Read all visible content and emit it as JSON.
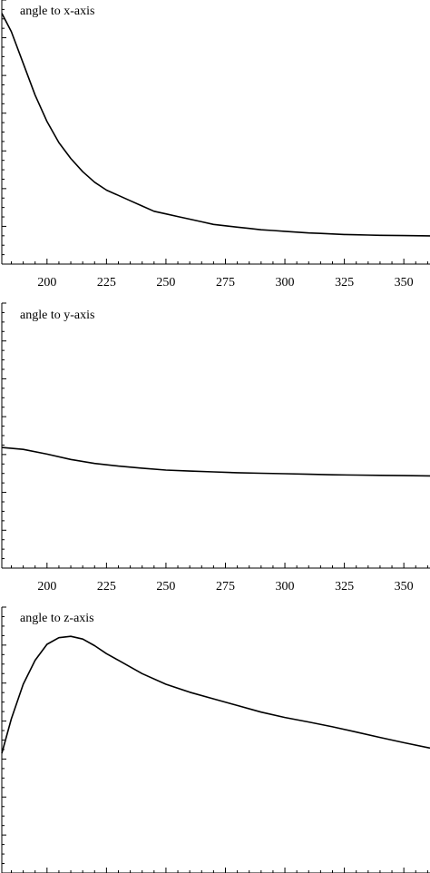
{
  "chart_data": [
    {
      "type": "line",
      "title": "angle to x-axis",
      "xlabel": "",
      "ylabel": "",
      "xlim": [
        181,
        361
      ],
      "ylim": [
        0,
        100
      ],
      "xticks": [
        "200",
        "225",
        "250",
        "275",
        "300",
        "325",
        "350"
      ],
      "grid": false,
      "line_color": "#000000",
      "series": [
        {
          "x": [
            181,
            185,
            190,
            195,
            200,
            205,
            210,
            215,
            220,
            225,
            230,
            235,
            240,
            245,
            250,
            255,
            260,
            265,
            270,
            275,
            280,
            285,
            290,
            295,
            300,
            305,
            310,
            315,
            320,
            325,
            330,
            335,
            340,
            350,
            361
          ],
          "values": [
            95,
            88,
            76,
            64,
            54,
            46,
            40,
            35,
            31,
            28,
            26,
            24,
            22,
            20,
            19,
            18,
            17,
            16,
            15,
            14.5,
            14,
            13.5,
            13,
            12.7,
            12.4,
            12.1,
            11.8,
            11.6,
            11.4,
            11.2,
            11.1,
            11,
            10.9,
            10.8,
            10.7
          ]
        }
      ]
    },
    {
      "type": "line",
      "title": "angle to y-axis",
      "xlabel": "",
      "ylabel": "",
      "xlim": [
        181,
        361
      ],
      "ylim": [
        0,
        100
      ],
      "xticks": [
        "200",
        "225",
        "250",
        "275",
        "300",
        "325",
        "350"
      ],
      "grid": false,
      "line_color": "#000000",
      "series": [
        {
          "x": [
            181,
            190,
            200,
            210,
            220,
            230,
            240,
            250,
            260,
            270,
            280,
            290,
            300,
            310,
            320,
            330,
            340,
            350,
            361
          ],
          "values": [
            45.5,
            44.8,
            43,
            41,
            39.5,
            38.5,
            37.7,
            37,
            36.6,
            36.3,
            36,
            35.8,
            35.6,
            35.4,
            35.2,
            35.1,
            35,
            34.9,
            34.8
          ]
        }
      ]
    },
    {
      "type": "line",
      "title": "angle to z-axis",
      "xlabel": "",
      "ylabel": "",
      "xlim": [
        181,
        361
      ],
      "ylim": [
        0,
        100
      ],
      "grid": false,
      "line_color": "#000000",
      "series": [
        {
          "x": [
            181,
            185,
            190,
            195,
            200,
            205,
            210,
            215,
            220,
            225,
            230,
            240,
            250,
            260,
            270,
            280,
            290,
            300,
            310,
            320,
            330,
            340,
            350,
            361
          ],
          "values": [
            45,
            58,
            71,
            80,
            86,
            88.5,
            89,
            88,
            85.5,
            82.5,
            80,
            75,
            71,
            68,
            65.5,
            63,
            60.5,
            58.5,
            56.8,
            55,
            53,
            51,
            49,
            47
          ]
        }
      ]
    }
  ]
}
